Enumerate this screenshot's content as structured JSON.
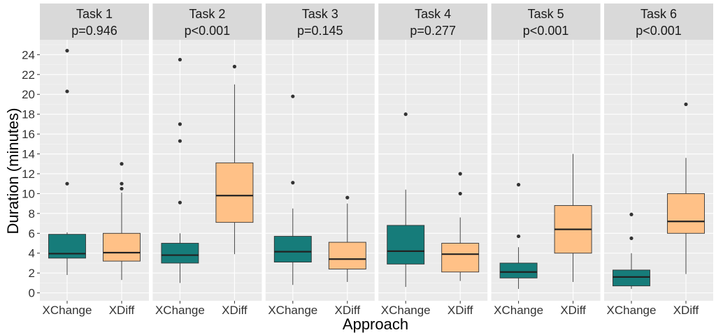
{
  "chart_data": {
    "type": "boxplot",
    "xlabel": "Approach",
    "ylabel": "Duration (minutes)",
    "ylim": [
      -0.8,
      25.5
    ],
    "yticks": [
      0,
      2,
      4,
      6,
      8,
      10,
      12,
      14,
      16,
      18,
      20,
      22,
      24
    ],
    "categories": [
      "XChange",
      "XDiff"
    ],
    "colors": {
      "XChange": "#167c7a",
      "XDiff": "#ffc187"
    },
    "panels": [
      {
        "title": "Task 1",
        "pvalue": "p=0.946",
        "boxes": [
          {
            "category": "XChange",
            "min": 1.8,
            "q1": 3.5,
            "median": 3.95,
            "q3": 5.9,
            "max": 6.1,
            "outliers": [
              24.4,
              20.3,
              11.0
            ]
          },
          {
            "category": "XDiff",
            "min": 1.3,
            "q1": 3.2,
            "median": 4.05,
            "q3": 6.0,
            "max": 10.1,
            "outliers": [
              13.0,
              11.0,
              10.5
            ]
          }
        ]
      },
      {
        "title": "Task 2",
        "pvalue": "p<0.001",
        "boxes": [
          {
            "category": "XChange",
            "min": 1.0,
            "q1": 3.0,
            "median": 3.8,
            "q3": 5.0,
            "max": 6.0,
            "outliers": [
              23.5,
              17.0,
              15.3,
              9.1
            ]
          },
          {
            "category": "XDiff",
            "min": 3.9,
            "q1": 7.1,
            "median": 9.8,
            "q3": 13.1,
            "max": 21.0,
            "outliers": [
              22.8
            ]
          }
        ]
      },
      {
        "title": "Task 3",
        "pvalue": "p=0.145",
        "boxes": [
          {
            "category": "XChange",
            "min": 0.8,
            "q1": 3.1,
            "median": 4.15,
            "q3": 5.7,
            "max": 8.5,
            "outliers": [
              19.8,
              11.1
            ]
          },
          {
            "category": "XDiff",
            "min": 1.1,
            "q1": 2.4,
            "median": 3.4,
            "q3": 5.1,
            "max": 9.0,
            "outliers": [
              9.6
            ]
          }
        ]
      },
      {
        "title": "Task 4",
        "pvalue": "p=0.277",
        "boxes": [
          {
            "category": "XChange",
            "min": 0.6,
            "q1": 2.9,
            "median": 4.2,
            "q3": 6.8,
            "max": 10.4,
            "outliers": [
              18.0
            ]
          },
          {
            "category": "XDiff",
            "min": 1.2,
            "q1": 2.1,
            "median": 3.9,
            "q3": 5.0,
            "max": 7.6,
            "outliers": [
              12.0,
              10.0
            ]
          }
        ]
      },
      {
        "title": "Task 5",
        "pvalue": "p<0.001",
        "boxes": [
          {
            "category": "XChange",
            "min": 0.4,
            "q1": 1.5,
            "median": 2.1,
            "q3": 3.0,
            "max": 4.6,
            "outliers": [
              10.9,
              5.7
            ]
          },
          {
            "category": "XDiff",
            "min": 1.1,
            "q1": 4.0,
            "median": 6.4,
            "q3": 8.8,
            "max": 14.0,
            "outliers": []
          }
        ]
      },
      {
        "title": "Task 6",
        "pvalue": "p<0.001",
        "boxes": [
          {
            "category": "XChange",
            "min": 0.4,
            "q1": 0.7,
            "median": 1.6,
            "q3": 2.3,
            "max": 4.0,
            "outliers": [
              7.9,
              5.5
            ]
          },
          {
            "category": "XDiff",
            "min": 1.9,
            "q1": 6.0,
            "median": 7.2,
            "q3": 10.0,
            "max": 13.6,
            "outliers": [
              19.0
            ]
          }
        ]
      }
    ]
  }
}
